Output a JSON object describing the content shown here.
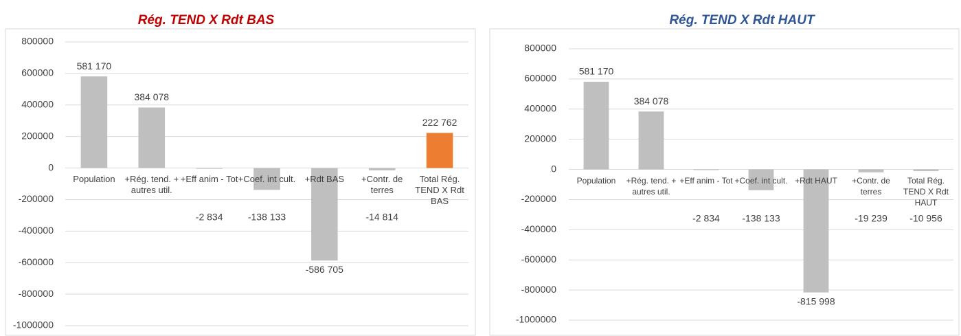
{
  "chart_data": [
    {
      "type": "bar",
      "title": "Rég. TEND X Rdt BAS",
      "categories": [
        "Population",
        "+Rég. tend. + autres util.",
        "+Eff anim - Tot",
        "+Coef. int cult.",
        "+Rdt BAS",
        "+Contr. de terres",
        "Total Rég. TEND X Rdt BAS"
      ],
      "values": [
        581170,
        384078,
        -2834,
        -138133,
        -586705,
        -14814,
        222762
      ],
      "value_labels": [
        "581 170",
        "384 078",
        "-2 834",
        "-138 133",
        "-586 705",
        "-14 814",
        "222 762"
      ],
      "colors": [
        "#bfbfbf",
        "#bfbfbf",
        "#bfbfbf",
        "#bfbfbf",
        "#bfbfbf",
        "#bfbfbf",
        "#ed7d31"
      ],
      "ylim": [
        -1000000,
        800000
      ],
      "yticks": [
        -1000000,
        -800000,
        -600000,
        -400000,
        -200000,
        0,
        200000,
        400000,
        600000,
        800000
      ],
      "grid": true
    },
    {
      "type": "bar",
      "title": "Rég. TEND X Rdt HAUT",
      "categories": [
        "Population",
        "+Rég. tend. + autres util.",
        "+Eff anim - Tot",
        "+Coef. int cult.",
        "+Rdt HAUT",
        "+Contr. de terres",
        "Total Rég. TEND X Rdt HAUT"
      ],
      "values": [
        581170,
        384078,
        -2834,
        -138133,
        -815998,
        -19239,
        -10956
      ],
      "value_labels": [
        "581 170",
        "384 078",
        "-2 834",
        "-138 133",
        "-815 998",
        "-19 239",
        "-10 956"
      ],
      "colors": [
        "#bfbfbf",
        "#bfbfbf",
        "#bfbfbf",
        "#bfbfbf",
        "#bfbfbf",
        "#bfbfbf",
        "#bfbfbf"
      ],
      "ylim": [
        -1000000,
        800000
      ],
      "yticks": [
        -1000000,
        -800000,
        -600000,
        -400000,
        -200000,
        0,
        200000,
        400000,
        600000,
        800000
      ],
      "grid": true
    }
  ]
}
